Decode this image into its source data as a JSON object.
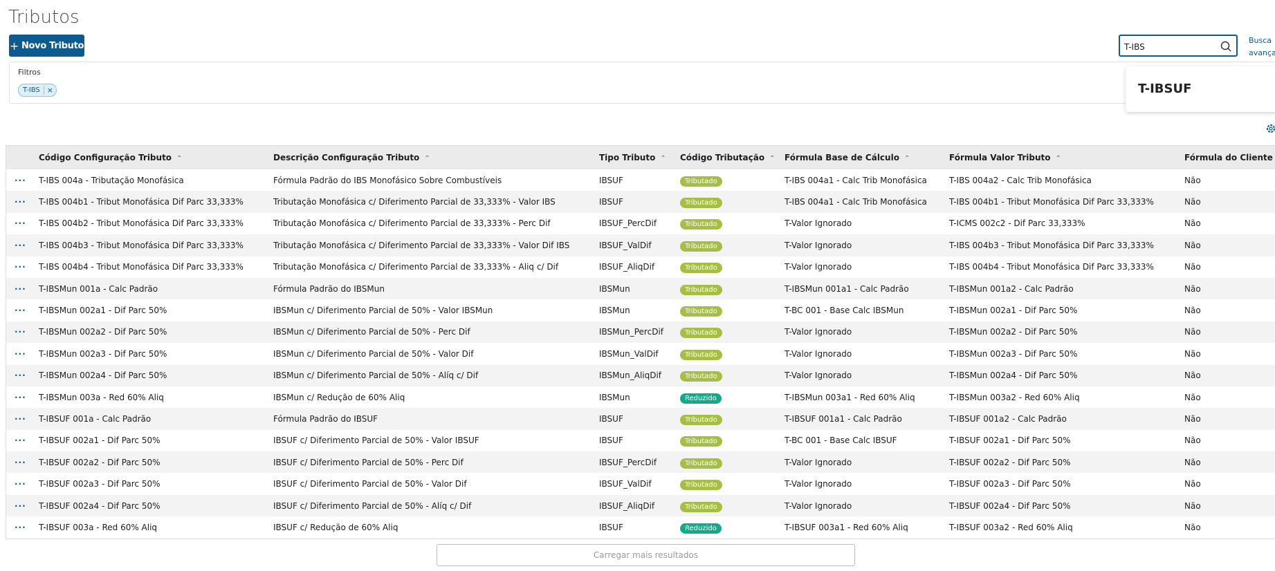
{
  "header": {
    "title": "Tributos",
    "new_button": "Novo Tributo",
    "search_value": "T-IBS",
    "advanced_search": "Busca avançada",
    "suggestion": "T-IBSUF"
  },
  "filters": {
    "label": "Filtros",
    "chips": [
      "T-IBS"
    ]
  },
  "table": {
    "columns": [
      "Código Configuração Tributo",
      "Descrição Configuração Tributo",
      "Tipo Tributo",
      "Código Tributação",
      "Fórmula Base de Cálculo",
      "Fórmula Valor Tributo",
      "Fórmula do Cliente"
    ],
    "rows": [
      [
        "T-IBS 004a - Tributação Monofásica",
        "Fórmula Padrão do IBS Monofásico Sobre Combustíveis",
        "IBSUF",
        "Tributado",
        "T-IBS 004a1 - Calc Trib Monofásica",
        "T-IBS 004a2 - Calc Trib Monofásica",
        "Não"
      ],
      [
        "T-IBS 004b1 - Tribut Monofásica Dif Parc 33,333%",
        "Tributação Monofásica c/ Diferimento Parcial de 33,333% - Valor IBS",
        "IBSUF",
        "Tributado",
        "T-IBS 004a1 - Calc Trib Monofásica",
        "T-IBS 004b1 - Tribut Monofásica Dif Parc 33,333%",
        "Não"
      ],
      [
        "T-IBS 004b2 - Tribut Monofásica Dif Parc 33,333%",
        "Tributação Monofásica c/ Diferimento Parcial de 33,333% - Perc Dif",
        "IBSUF_PercDif",
        "Tributado",
        "T-Valor Ignorado",
        "T-ICMS 002c2 - Dif Parc 33,333%",
        "Não"
      ],
      [
        "T-IBS 004b3 - Tribut Monofásica Dif Parc 33,333%",
        "Tributação Monofásica c/ Diferimento Parcial de 33,333% - Valor Dif IBS",
        "IBSUF_ValDif",
        "Tributado",
        "T-Valor Ignorado",
        "T-IBS 004b3 - Tribut Monofásica Dif Parc 33,333%",
        "Não"
      ],
      [
        "T-IBS 004b4 - Tribut Monofásica Dif Parc 33,333%",
        "Tributação Monofásica c/ Diferimento Parcial de 33,333% - Aliq c/ Dif",
        "IBSUF_AliqDif",
        "Tributado",
        "T-Valor Ignorado",
        "T-IBS 004b4 - Tribut Monofásica Dif Parc 33,333%",
        "Não"
      ],
      [
        "T-IBSMun 001a - Calc Padrão",
        "Fórmula Padrão do IBSMun",
        "IBSMun",
        "Tributado",
        "T-IBSMun 001a1 - Calc Padrão",
        "T-IBSMun 001a2 - Calc Padrão",
        "Não"
      ],
      [
        "T-IBSMun 002a1 - Dif Parc 50%",
        "IBSMun c/ Diferimento Parcial de 50% - Valor IBSMun",
        "IBSMun",
        "Tributado",
        "T-BC 001 - Base Calc IBSMun",
        "T-IBSMun 002a1 - Dif Parc 50%",
        "Não"
      ],
      [
        "T-IBSMun 002a2 - Dif Parc 50%",
        "IBSMun c/ Diferimento Parcial de 50% - Perc Dif",
        "IBSMun_PercDif",
        "Tributado",
        "T-Valor Ignorado",
        "T-IBSMun 002a2 - Dif Parc 50%",
        "Não"
      ],
      [
        "T-IBSMun 002a3 - Dif Parc 50%",
        "IBSMun c/ Diferimento Parcial de 50% - Valor Dif",
        "IBSMun_ValDif",
        "Tributado",
        "T-Valor Ignorado",
        "T-IBSMun 002a3 - Dif Parc 50%",
        "Não"
      ],
      [
        "T-IBSMun 002a4 - Dif Parc 50%",
        "IBSMun c/ Diferimento Parcial de 50% - Alíq c/ Dif",
        "IBSMun_AliqDif",
        "Tributado",
        "T-Valor Ignorado",
        "T-IBSMun 002a4 - Dif Parc 50%",
        "Não"
      ],
      [
        "T-IBSMun 003a - Red 60% Aliq",
        "IBSMun c/ Redução de 60% Aliq",
        "IBSMun",
        "Reduzido",
        "T-IBSMun 003a1 - Red 60% Aliq",
        "T-IBSMun 003a2 - Red 60% Aliq",
        "Não"
      ],
      [
        "T-IBSUF 001a - Calc Padrão",
        "Fórmula Padrão do IBSUF",
        "IBSUF",
        "Tributado",
        "T-IBSUF 001a1 - Calc Padrão",
        "T-IBSUF 001a2 - Calc Padrão",
        "Não"
      ],
      [
        "T-IBSUF 002a1 - Dif Parc 50%",
        "IBSUF c/ Diferimento Parcial de 50% - Valor IBSUF",
        "IBSUF",
        "Tributado",
        "T-BC 001 - Base Calc IBSUF",
        "T-IBSUF 002a1 - Dif Parc 50%",
        "Não"
      ],
      [
        "T-IBSUF 002a2 - Dif Parc 50%",
        "IBSUF c/ Diferimento Parcial de 50% - Perc Dif",
        "IBSUF_PercDif",
        "Tributado",
        "T-Valor Ignorado",
        "T-IBSUF 002a2 - Dif Parc 50%",
        "Não"
      ],
      [
        "T-IBSUF 002a3 - Dif Parc 50%",
        "IBSUF c/ Diferimento Parcial de 50% - Valor Dif",
        "IBSUF_ValDif",
        "Tributado",
        "T-Valor Ignorado",
        "T-IBSUF 002a3 - Dif Parc 50%",
        "Não"
      ],
      [
        "T-IBSUF 002a4 - Dif Parc 50%",
        "IBSUF c/ Diferimento Parcial de 50% - Alíq c/ Dif",
        "IBSUF_AliqDif",
        "Tributado",
        "T-Valor Ignorado",
        "T-IBSUF 002a4 - Dif Parc 50%",
        "Não"
      ],
      [
        "T-IBSUF 003a - Red 60% Aliq",
        "IBSUF c/ Redução de 60% Aliq",
        "IBSUF",
        "Reduzido",
        "T-IBSUF 003a1 - Red 60% Aliq",
        "T-IBSUF 003a2 - Red 60% Aliq",
        "Não"
      ]
    ]
  },
  "load_more": "Carregar mais resultados"
}
